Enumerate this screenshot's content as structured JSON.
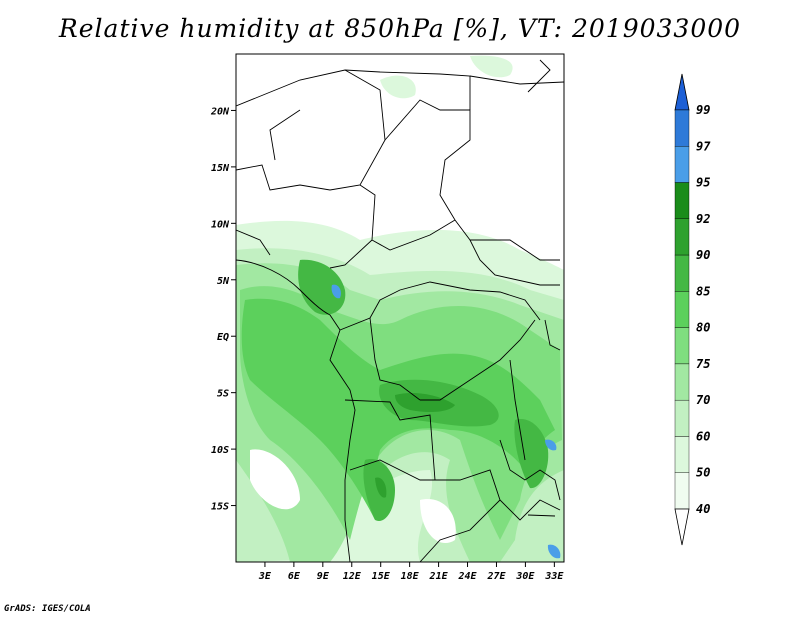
{
  "title": "Relative humidity at 850hPa [%], VT: 2019033000",
  "footer": "GrADS: IGES/COLA",
  "map": {
    "lon_range": [
      0,
      34
    ],
    "lat_range": [
      -20,
      25
    ],
    "lon_ticks": [
      "3E",
      "6E",
      "9E",
      "12E",
      "15E",
      "18E",
      "21E",
      "24E",
      "27E",
      "30E",
      "33E"
    ],
    "lon_tick_values": [
      3,
      6,
      9,
      12,
      15,
      18,
      21,
      24,
      27,
      30,
      33
    ],
    "lat_ticks": [
      "20N",
      "15N",
      "10N",
      "5N",
      "EQ",
      "5S",
      "10S",
      "15S"
    ],
    "lat_tick_values": [
      20,
      15,
      10,
      5,
      0,
      -5,
      -10,
      -15
    ]
  },
  "colorbar": {
    "levels": [
      "99",
      "97",
      "95",
      "92",
      "90",
      "85",
      "80",
      "75",
      "70",
      "60",
      "50",
      "40"
    ],
    "colors": [
      "#1c5fd6",
      "#2e7ad8",
      "#4a9ee8",
      "#1a8c1a",
      "#2ea12e",
      "#44b844",
      "#5cd05c",
      "#7fde7f",
      "#a2e8a2",
      "#c2f0c2",
      "#dcf8dc",
      "#f0fcf0",
      "#ffffff"
    ]
  }
}
